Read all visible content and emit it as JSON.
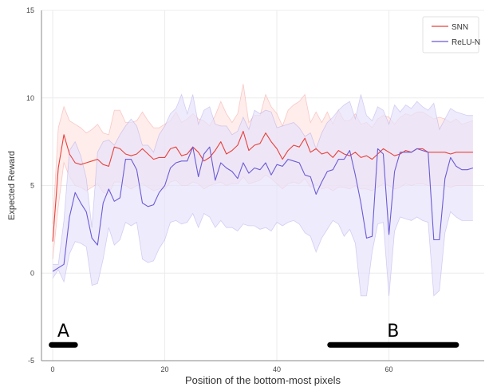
{
  "chart_data": {
    "type": "line",
    "title": "",
    "xlabel": "Position of the bottom-most pixels",
    "ylabel": "Expected Reward",
    "xlim": [
      -2,
      77
    ],
    "ylim": [
      -5,
      15
    ],
    "xticks": [
      0,
      20,
      40,
      60
    ],
    "yticks": [
      -5,
      0,
      5,
      10,
      15
    ],
    "grid": true,
    "legend_position": "top-right",
    "x": [
      0,
      1,
      2,
      3,
      4,
      5,
      6,
      7,
      8,
      9,
      10,
      11,
      12,
      13,
      14,
      15,
      16,
      17,
      18,
      19,
      20,
      21,
      22,
      23,
      24,
      25,
      26,
      27,
      28,
      29,
      30,
      31,
      32,
      33,
      34,
      35,
      36,
      37,
      38,
      39,
      40,
      41,
      42,
      43,
      44,
      45,
      46,
      47,
      48,
      49,
      50,
      51,
      52,
      53,
      54,
      55,
      56,
      57,
      58,
      59,
      60,
      61,
      62,
      63,
      64,
      65,
      66,
      67,
      68,
      69,
      70,
      71,
      72,
      73,
      74,
      75
    ],
    "series": [
      {
        "name": "SNN",
        "color": "#e8413c",
        "fill": "#fde6e2",
        "values": [
          1.8,
          6.0,
          7.9,
          6.8,
          6.3,
          6.2,
          6.3,
          6.4,
          6.5,
          6.2,
          6.1,
          7.2,
          7.1,
          6.8,
          6.7,
          6.8,
          7.1,
          6.8,
          6.5,
          6.6,
          6.6,
          7.1,
          7.2,
          6.7,
          6.8,
          7.2,
          6.9,
          6.4,
          6.6,
          7.0,
          7.5,
          6.8,
          7.0,
          7.3,
          8.1,
          7.0,
          7.3,
          7.4,
          8.0,
          7.5,
          7.1,
          6.5,
          7.0,
          7.3,
          7.2,
          7.7,
          6.9,
          7.1,
          6.8,
          6.9,
          6.6,
          7.0,
          6.8,
          6.7,
          6.9,
          6.6,
          6.7,
          6.5,
          6.8,
          7.1,
          6.9,
          6.7,
          6.8,
          7.0,
          6.9,
          7.1,
          7.1,
          6.9,
          6.9,
          6.9,
          6.9,
          6.8,
          6.9,
          6.9,
          6.9,
          6.9
        ],
        "upper": [
          2.8,
          8.3,
          9.5,
          8.7,
          8.5,
          8.3,
          8.0,
          8.2,
          8.5,
          8.0,
          7.9,
          9.3,
          9.3,
          8.6,
          8.6,
          8.7,
          9.2,
          8.7,
          8.3,
          8.3,
          8.5,
          8.7,
          9.2,
          8.6,
          8.8,
          9.1,
          8.8,
          8.7,
          8.4,
          9.0,
          9.8,
          9.1,
          8.6,
          9.1,
          10.8,
          8.6,
          9.0,
          9.0,
          10.2,
          9.5,
          9.1,
          8.4,
          9.3,
          9.6,
          9.8,
          10.2,
          8.6,
          9.2,
          8.6,
          9.2,
          8.5,
          9.3,
          8.7,
          8.7,
          9.1,
          8.5,
          8.6,
          8.3,
          8.8,
          9.0,
          8.9,
          8.5,
          8.9,
          9.1,
          9.0,
          9.2,
          9.2,
          9.0,
          8.8,
          8.9,
          8.8,
          8.6,
          8.8,
          8.5,
          8.6,
          8.7
        ],
        "lower": [
          0.8,
          3.8,
          6.3,
          5.5,
          5.0,
          4.9,
          4.7,
          4.9,
          5.1,
          4.6,
          4.5,
          5.2,
          5.2,
          5.0,
          4.8,
          5.0,
          5.1,
          4.9,
          4.7,
          4.8,
          4.8,
          5.2,
          5.3,
          5.0,
          5.0,
          5.2,
          5.1,
          4.8,
          5.0,
          5.1,
          5.2,
          5.0,
          5.1,
          5.1,
          5.5,
          5.1,
          5.2,
          5.3,
          5.6,
          5.4,
          5.1,
          4.8,
          5.1,
          5.2,
          5.1,
          5.4,
          4.9,
          5.1,
          4.8,
          4.9,
          4.7,
          4.9,
          4.9,
          4.8,
          5.0,
          4.8,
          4.8,
          4.7,
          4.9,
          5.1,
          5.0,
          4.8,
          4.9,
          5.1,
          5.0,
          5.1,
          5.1,
          5.0,
          5.0,
          5.0,
          5.0,
          4.9,
          5.0,
          5.0,
          5.0,
          5.0
        ]
      },
      {
        "name": "ReLU-N",
        "color": "#6b5bd6",
        "fill": "#e7e3fb",
        "values": [
          0.1,
          0.3,
          0.5,
          3.2,
          4.6,
          4.0,
          3.5,
          2.0,
          1.6,
          4.0,
          4.8,
          4.1,
          4.3,
          6.5,
          6.5,
          5.9,
          4.0,
          3.8,
          3.9,
          4.6,
          5.0,
          6.0,
          6.3,
          6.4,
          6.4,
          7.2,
          5.5,
          6.8,
          7.2,
          5.3,
          6.3,
          6.0,
          5.8,
          5.4,
          6.3,
          5.7,
          6.0,
          5.9,
          6.3,
          5.6,
          6.2,
          6.1,
          6.5,
          6.4,
          6.3,
          5.6,
          5.5,
          4.5,
          5.2,
          5.8,
          5.9,
          6.5,
          6.5,
          7.0,
          5.6,
          4.0,
          2.0,
          2.1,
          7.1,
          6.8,
          2.2,
          5.8,
          6.9,
          6.9,
          6.9,
          7.1,
          7.0,
          6.9,
          1.9,
          1.9,
          5.4,
          6.6,
          6.1,
          5.9,
          5.9,
          6.0
        ],
        "upper": [
          0.5,
          0.5,
          3.0,
          7.0,
          7.5,
          6.7,
          5.4,
          2.6,
          6.9,
          7.5,
          7.6,
          7.3,
          7.9,
          8.4,
          8.8,
          8.4,
          7.3,
          7.3,
          6.9,
          7.9,
          8.4,
          9.1,
          9.4,
          10.2,
          9.1,
          10.2,
          8.5,
          9.3,
          9.5,
          8.5,
          8.4,
          8.4,
          7.9,
          8.1,
          8.9,
          8.2,
          9.3,
          9.1,
          9.3,
          9.2,
          8.3,
          8.4,
          8.5,
          8.6,
          8.3,
          7.8,
          8.0,
          7.1,
          8.0,
          8.6,
          8.9,
          9.3,
          9.6,
          9.8,
          8.8,
          10.2,
          9.0,
          8.7,
          9.5,
          9.3,
          8.5,
          9.6,
          9.2,
          9.6,
          9.4,
          9.8,
          9.5,
          9.3,
          9.7,
          8.2,
          8.8,
          9.4,
          9.2,
          9.1,
          9.0,
          9.0
        ],
        "lower": [
          -0.3,
          0.2,
          -0.5,
          1.1,
          1.8,
          1.7,
          1.5,
          -0.7,
          -0.6,
          0.8,
          2.6,
          1.6,
          1.9,
          2.9,
          2.7,
          2.9,
          0.8,
          0.6,
          0.7,
          1.4,
          1.9,
          2.9,
          3.0,
          2.8,
          2.9,
          3.4,
          2.6,
          3.4,
          3.2,
          2.6,
          3.0,
          2.6,
          2.6,
          2.4,
          2.8,
          2.7,
          2.7,
          2.5,
          2.6,
          2.4,
          2.9,
          2.7,
          2.9,
          3.0,
          2.8,
          2.3,
          2.1,
          1.2,
          2.0,
          2.5,
          3.0,
          2.8,
          2.1,
          2.5,
          1.7,
          -1.3,
          -1.3,
          1.2,
          2.8,
          2.9,
          -1.3,
          2.4,
          3.2,
          3.1,
          3.0,
          3.2,
          3.0,
          2.9,
          -1.3,
          -1.0,
          2.3,
          3.5,
          3.2,
          3.0,
          3.0,
          3.0
        ]
      }
    ],
    "annotations": [
      {
        "label": "A",
        "x_start": -0.2,
        "x_end": 4.0,
        "y": -4.1
      },
      {
        "label": "B",
        "x_start": 49.5,
        "x_end": 72.0,
        "y": -4.1
      }
    ]
  }
}
